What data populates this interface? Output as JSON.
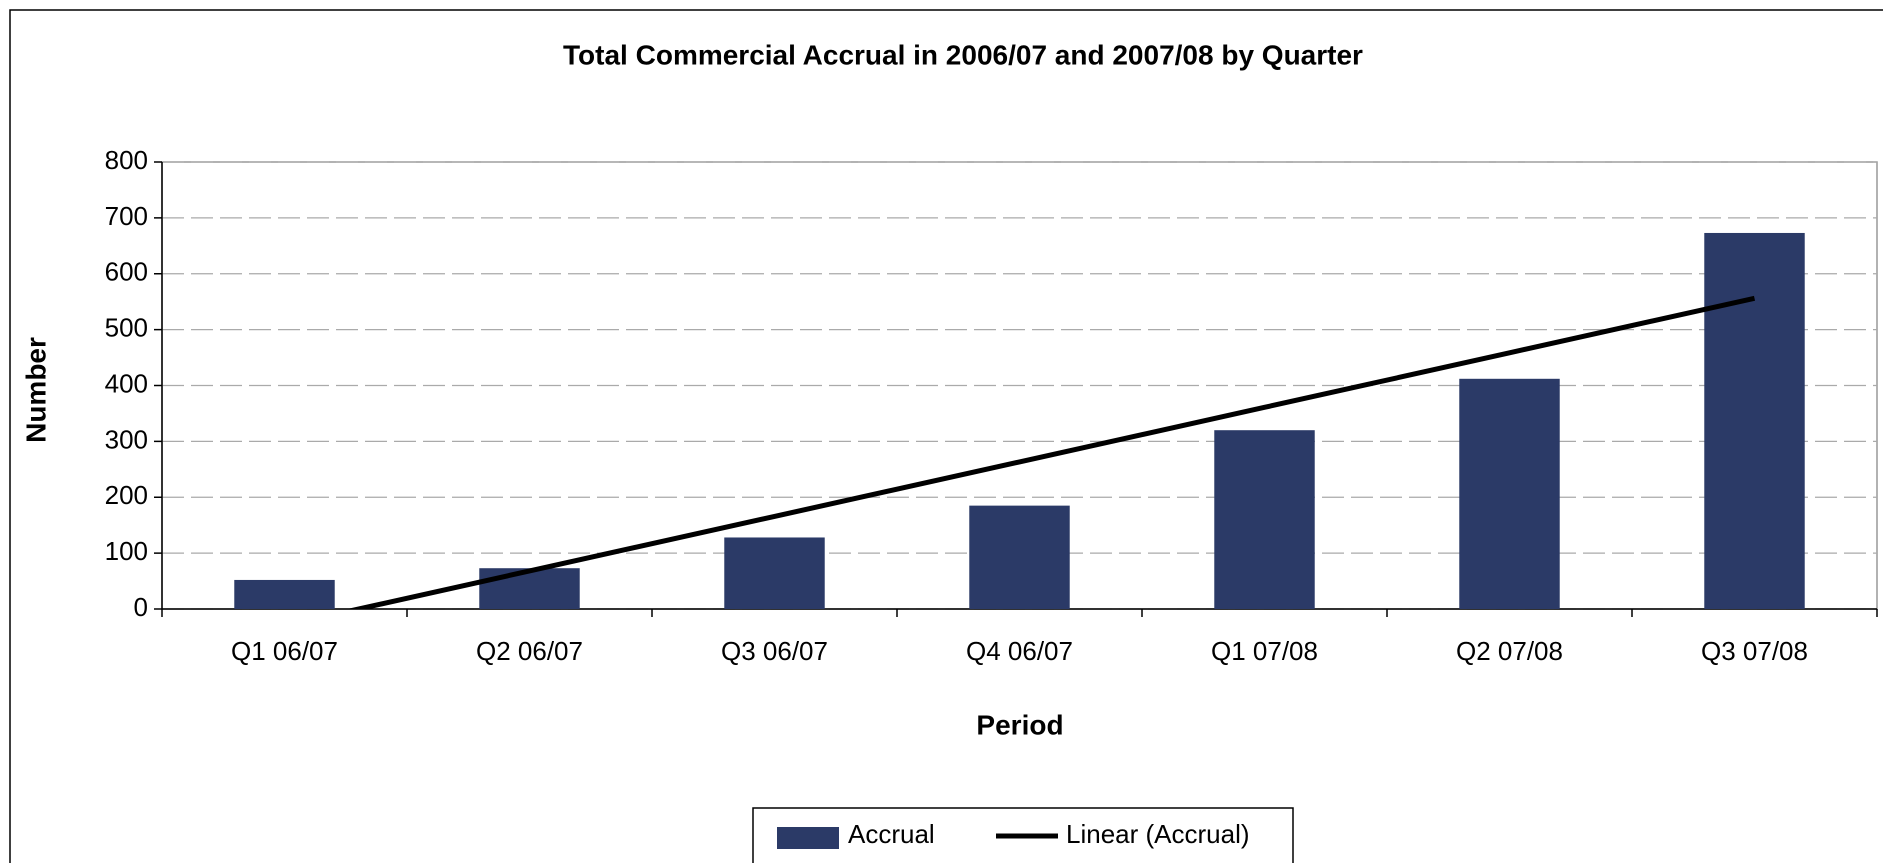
{
  "chart_data": {
    "type": "bar",
    "title": "Total Commercial Accrual in 2006/07 and 2007/08 by Quarter",
    "x_label": "Period",
    "y_label": "Number",
    "categories": [
      "Q1 06/07",
      "Q2 06/07",
      "Q3 06/07",
      "Q4 06/07",
      "Q1 07/08",
      "Q2 07/08",
      "Q3 07/08"
    ],
    "series": [
      {
        "name": "Accrual",
        "type": "bar",
        "color": "#2b3a67",
        "values": [
          52,
          73,
          128,
          185,
          320,
          412,
          673
        ]
      },
      {
        "name": "Linear (Accrual)",
        "type": "line",
        "color": "#000000",
        "values": [
          -29.5,
          68.1,
          165.7,
          263.3,
          360.9,
          458.5,
          556.1
        ]
      }
    ],
    "ylim": [
      0,
      800
    ],
    "yticks": [
      0,
      100,
      200,
      300,
      400,
      500,
      600,
      700,
      800
    ],
    "grid": true,
    "legend": "bottom"
  }
}
